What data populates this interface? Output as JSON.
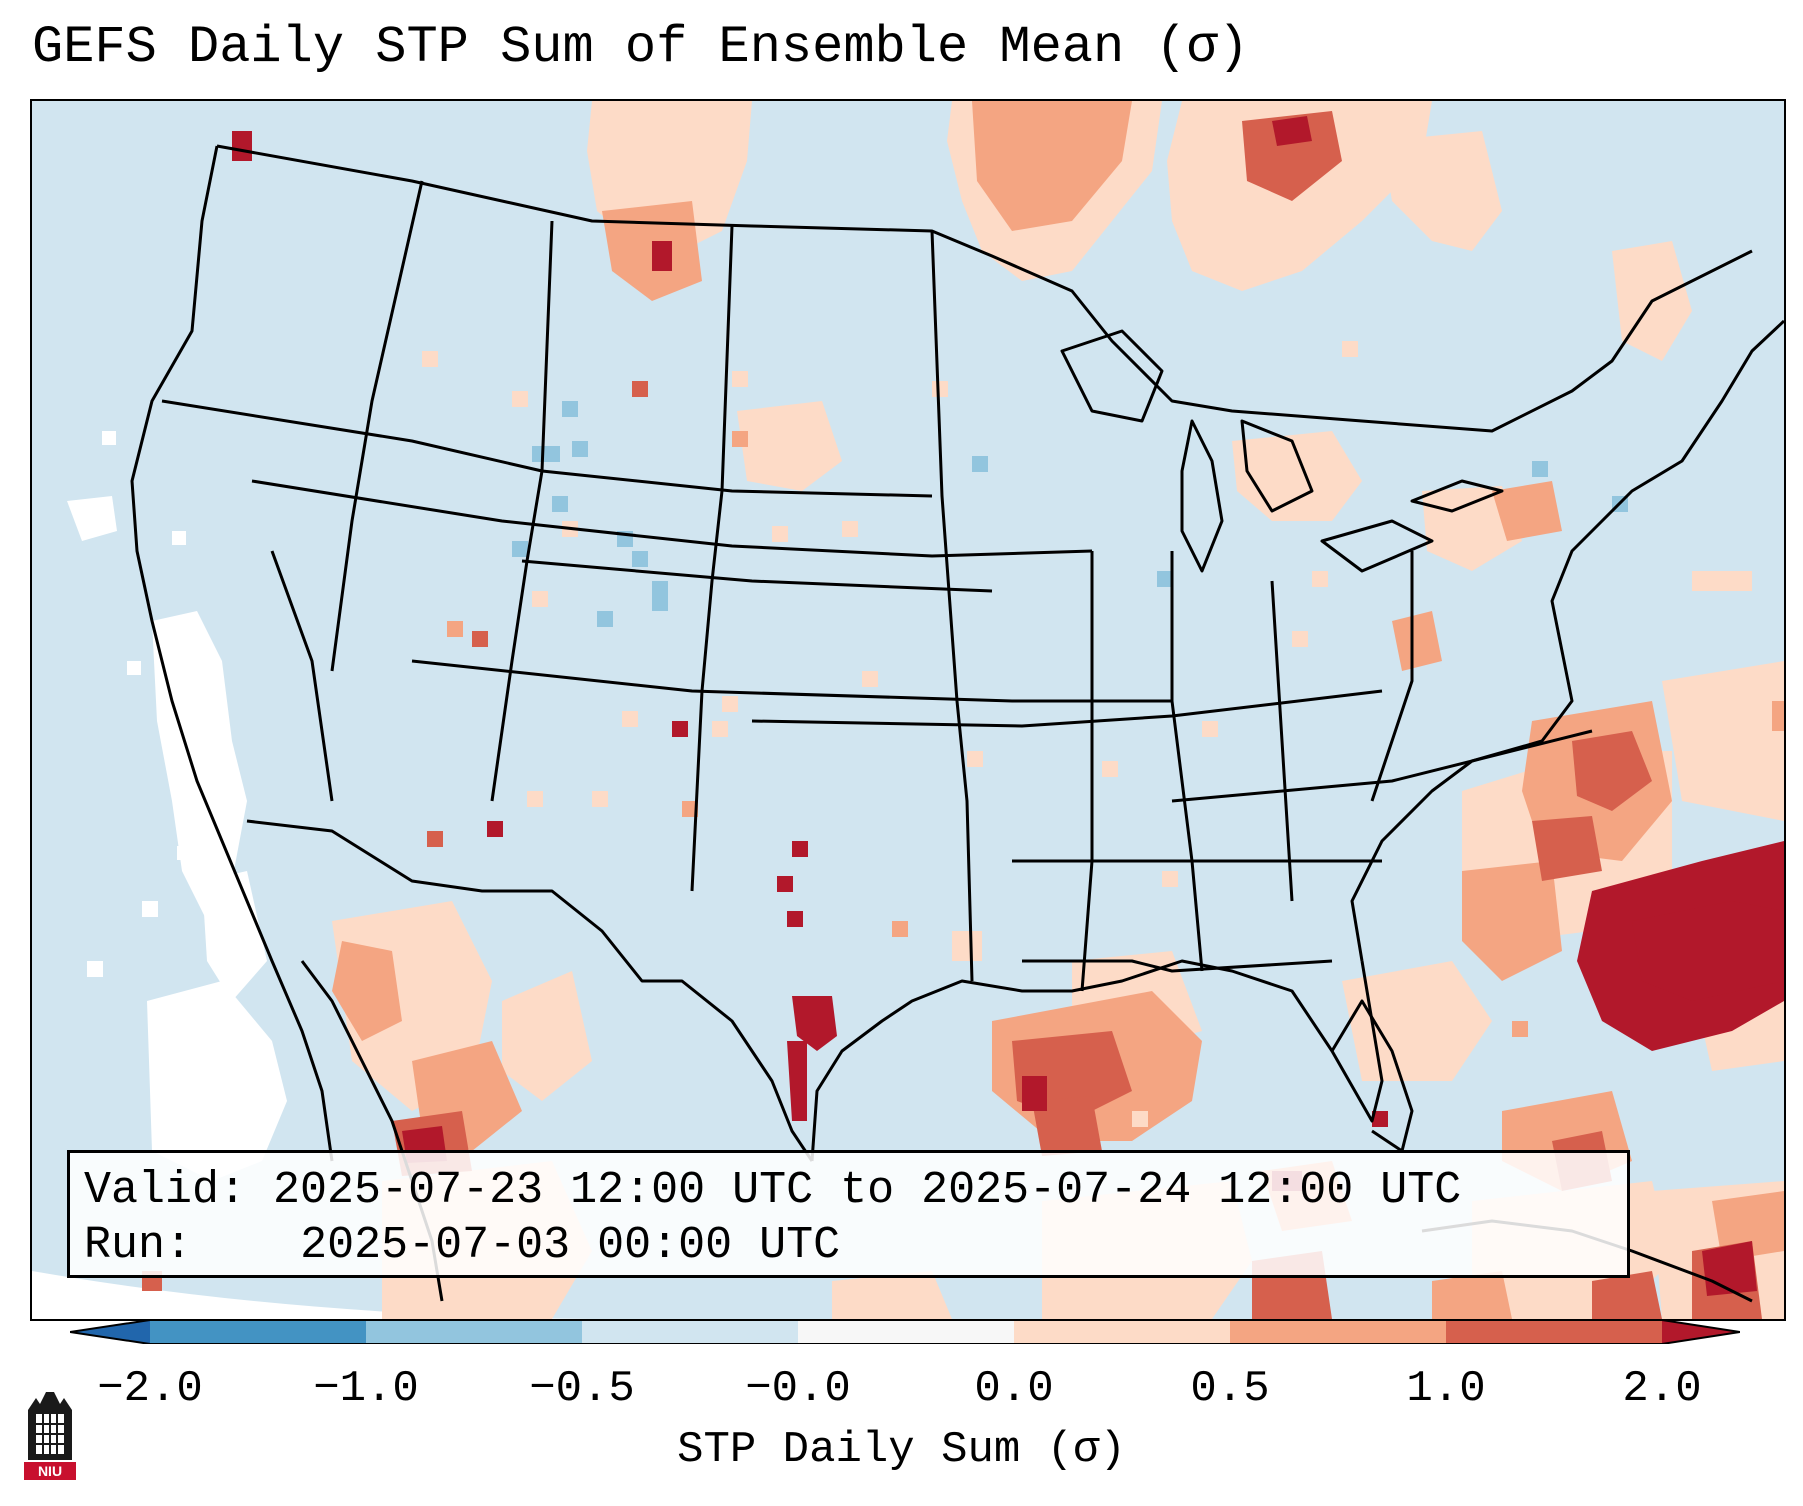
{
  "title": "GEFS Daily STP Sum of Ensemble Mean (σ)",
  "map": {
    "region": "CONUS",
    "background_color": "#d1e5f0",
    "field_colors": {
      "light": "#fddbc7",
      "medium": "#f4a582",
      "strong": "#d6604d",
      "extreme": "#b2182b",
      "negative_light": "#92c5de",
      "near_zero": "#ffffff"
    }
  },
  "valid_text": {
    "label": "Valid:",
    "value": "2025-07-23 12:00 UTC to 2025-07-24 12:00 UTC"
  },
  "run_text": {
    "label": "Run:",
    "value": "2025-07-03 00:00 UTC"
  },
  "colorbar": {
    "ticks": [
      "−2.0",
      "−1.0",
      "−0.5",
      "−0.0",
      "0.0",
      "0.5",
      "1.0",
      "2.0"
    ],
    "colors": [
      "#4393c3",
      "#92c5de",
      "#d1e5f0",
      "#f7f7f7",
      "#fddbc7",
      "#f4a582",
      "#d6604d"
    ],
    "under_color": "#2166ac",
    "over_color": "#b2182b",
    "label": "STP Daily Sum (σ)"
  },
  "logo": {
    "text": "NIU",
    "icon": "niu-building-icon"
  }
}
